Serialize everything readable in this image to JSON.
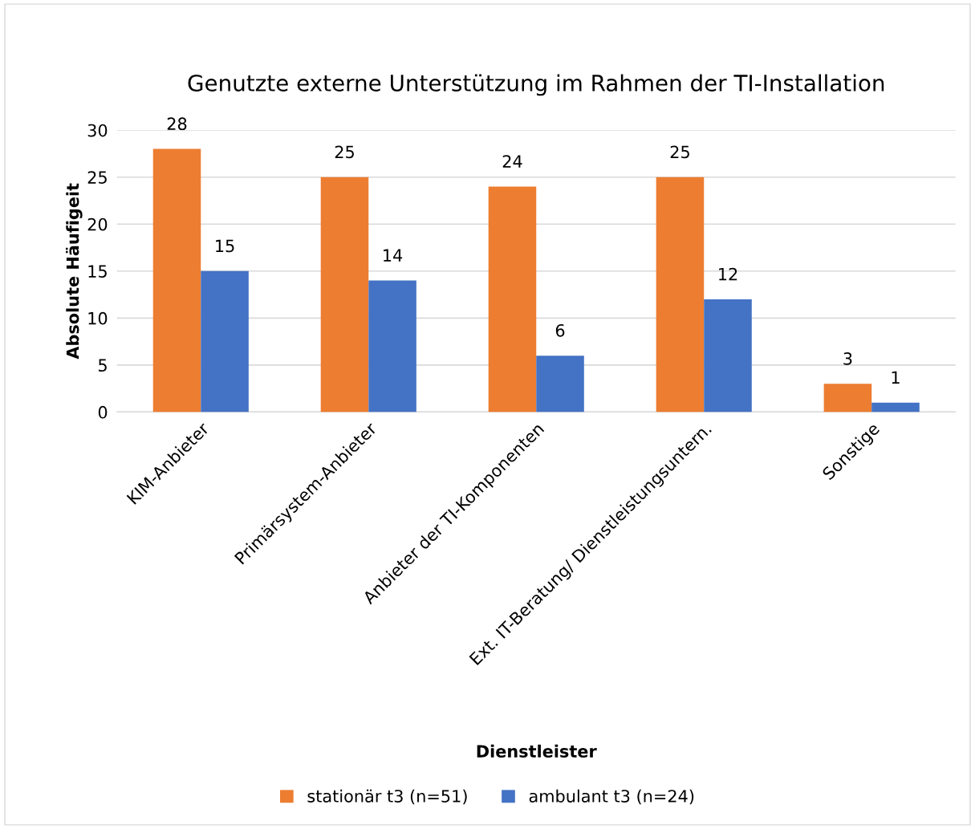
{
  "chart_data": {
    "type": "bar",
    "title": "Genutzte externe Unterstützung im Rahmen der TI-Installation",
    "xlabel": "Dienstleister",
    "ylabel": "Absolute Häufigeit",
    "categories": [
      "KIM-Anbieter",
      "Primärsystem-Anbieter",
      "Anbieter der TI-Komponenten",
      "Ext. IT-Beratung/ Dienstleistungsuntern.",
      "Sonstige"
    ],
    "series": [
      {
        "name": "stationär t3 (n=51)",
        "color": "#ed7d31",
        "values": [
          28,
          25,
          24,
          25,
          3
        ]
      },
      {
        "name": "ambulant t3 (n=24)",
        "color": "#4472c4",
        "values": [
          15,
          14,
          6,
          12,
          1
        ]
      }
    ],
    "ylim": [
      0,
      30
    ],
    "yticks": [
      0,
      5,
      10,
      15,
      20,
      25,
      30
    ],
    "grid": "y",
    "legend": "bottom",
    "data_labels": true
  }
}
